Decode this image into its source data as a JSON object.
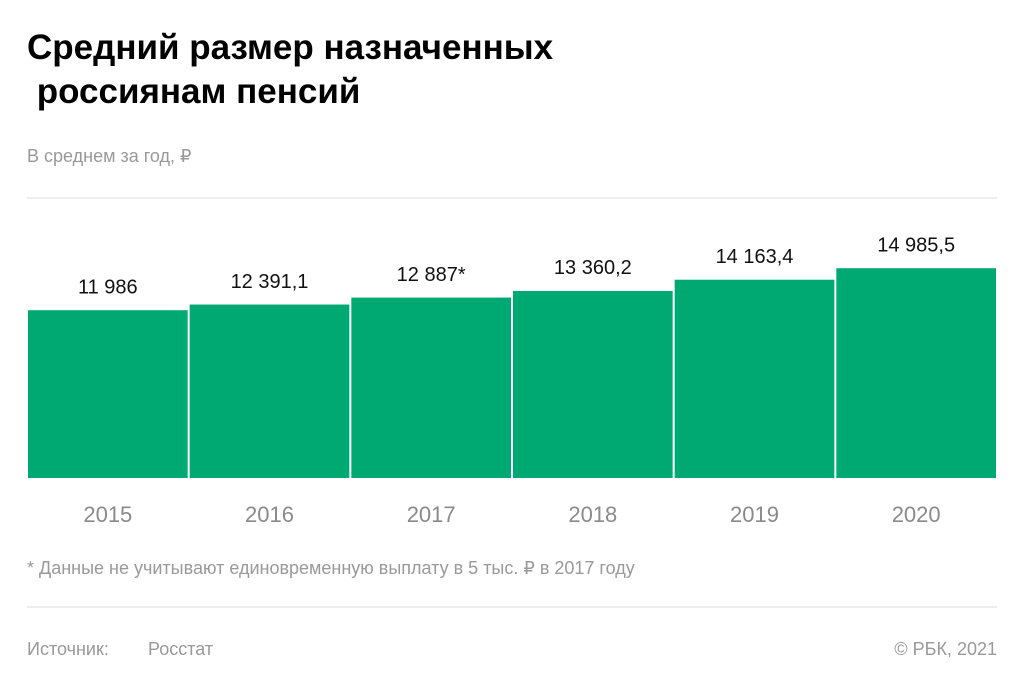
{
  "chart_data": {
    "type": "bar",
    "title": "Средний размер назначенных россиянам пенсий",
    "subtitle": "В среднем за год, ₽",
    "categories": [
      "2015",
      "2016",
      "2017",
      "2018",
      "2019",
      "2020"
    ],
    "values": [
      11986,
      12391.1,
      12887,
      13360.2,
      14163.4,
      14985.5
    ],
    "value_labels": [
      "11 986",
      "12 391,1",
      "12 887*",
      "13 360,2",
      "14 163,4",
      "14 985,5"
    ],
    "color": "#00a971",
    "ylim": [
      0,
      20000
    ],
    "note": "* Данные не учитывают единовременную выплату в 5 тыс. ₽ в 2017 году",
    "source_label": "Источник:",
    "source": "Росстат",
    "copyright": "©  РБК, 2021"
  }
}
